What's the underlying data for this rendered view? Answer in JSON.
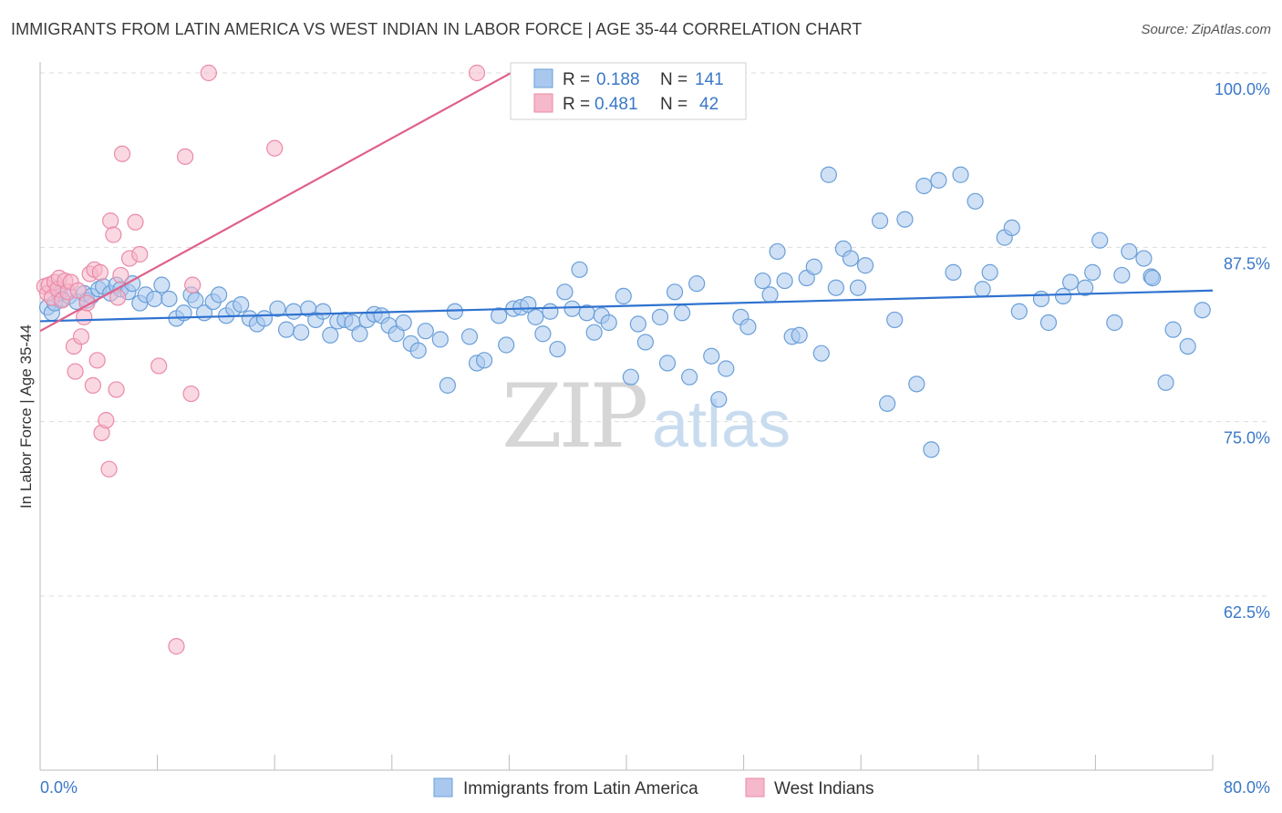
{
  "title": "IMMIGRANTS FROM LATIN AMERICA VS WEST INDIAN IN LABOR FORCE | AGE 35-44 CORRELATION CHART",
  "source": "Source: ZipAtlas.com",
  "watermark": {
    "zip": "ZIP",
    "atlas": "atlas"
  },
  "colors": {
    "blue_fill": "#aac8ee",
    "blue_stroke": "#6a9fd8",
    "blue_line": "#2f72d0",
    "pink_fill": "#f6b8cb",
    "pink_stroke": "#ea8aa9",
    "pink_line": "#e0608a",
    "grid": "#dcdcdc",
    "tick_text": "#3a78c9"
  },
  "legend": {
    "rows": [
      {
        "r_label": "R =",
        "r_value": "0.188",
        "n_label": "N =",
        "n_value": "141"
      },
      {
        "r_label": "R =",
        "r_value": "0.481",
        "n_label": "N =",
        "n_value": "42"
      }
    ]
  },
  "chart_data": {
    "type": "scatter",
    "xlabel": "",
    "ylabel": "In Labor Force | Age 35-44",
    "xlim": [
      0,
      80
    ],
    "ylim": [
      50,
      101
    ],
    "x_tick_labels": {
      "left": "0.0%",
      "right": "80.0%"
    },
    "y_ticks": [
      {
        "value": 100,
        "label": "100.0%"
      },
      {
        "value": 87.5,
        "label": "87.5%"
      },
      {
        "value": 75,
        "label": "75.0%"
      },
      {
        "value": 62.5,
        "label": "62.5%"
      }
    ],
    "grid": "horizontal dashed",
    "series": [
      {
        "name": "Immigrants from Latin America",
        "color": "blue",
        "trend": {
          "x": [
            0,
            80
          ],
          "y": [
            82.2,
            84.4
          ]
        },
        "points": [
          [
            0.5,
            83.2
          ],
          [
            0.8,
            82.8
          ],
          [
            1.0,
            83.5
          ],
          [
            1.3,
            84.2
          ],
          [
            1.5,
            83.8
          ],
          [
            2.0,
            84.0
          ],
          [
            2.5,
            83.6
          ],
          [
            3.0,
            84.2
          ],
          [
            3.2,
            83.7
          ],
          [
            3.5,
            84.0
          ],
          [
            4.0,
            84.5
          ],
          [
            4.3,
            84.7
          ],
          [
            4.8,
            84.2
          ],
          [
            5.2,
            84.8
          ],
          [
            5.5,
            84.5
          ],
          [
            6.0,
            84.3
          ],
          [
            6.3,
            84.9
          ],
          [
            6.8,
            83.5
          ],
          [
            7.2,
            84.1
          ],
          [
            7.8,
            83.8
          ],
          [
            8.3,
            84.8
          ],
          [
            8.8,
            83.8
          ],
          [
            9.3,
            82.4
          ],
          [
            9.8,
            82.8
          ],
          [
            10.3,
            84.1
          ],
          [
            10.6,
            83.7
          ],
          [
            11.2,
            82.8
          ],
          [
            11.8,
            83.6
          ],
          [
            12.2,
            84.1
          ],
          [
            12.7,
            82.6
          ],
          [
            13.2,
            83.1
          ],
          [
            13.7,
            83.4
          ],
          [
            14.3,
            82.4
          ],
          [
            14.8,
            82.0
          ],
          [
            15.3,
            82.4
          ],
          [
            16.2,
            83.1
          ],
          [
            16.8,
            81.6
          ],
          [
            17.3,
            82.9
          ],
          [
            17.8,
            81.4
          ],
          [
            18.3,
            83.1
          ],
          [
            18.8,
            82.3
          ],
          [
            19.3,
            82.9
          ],
          [
            19.8,
            81.2
          ],
          [
            20.3,
            82.2
          ],
          [
            20.8,
            82.3
          ],
          [
            21.3,
            82.1
          ],
          [
            21.8,
            81.3
          ],
          [
            22.3,
            82.3
          ],
          [
            22.8,
            82.7
          ],
          [
            23.3,
            82.6
          ],
          [
            23.8,
            81.9
          ],
          [
            24.3,
            81.3
          ],
          [
            24.8,
            82.1
          ],
          [
            25.3,
            80.6
          ],
          [
            25.8,
            80.1
          ],
          [
            26.3,
            81.5
          ],
          [
            27.3,
            80.9
          ],
          [
            27.8,
            77.6
          ],
          [
            28.3,
            82.9
          ],
          [
            29.3,
            81.1
          ],
          [
            29.8,
            79.2
          ],
          [
            30.3,
            79.4
          ],
          [
            31.3,
            82.6
          ],
          [
            31.8,
            80.5
          ],
          [
            32.3,
            83.1
          ],
          [
            32.8,
            83.2
          ],
          [
            33.3,
            83.4
          ],
          [
            33.8,
            82.5
          ],
          [
            34.3,
            81.3
          ],
          [
            34.8,
            82.9
          ],
          [
            35.3,
            80.2
          ],
          [
            35.8,
            84.3
          ],
          [
            36.3,
            83.1
          ],
          [
            36.8,
            85.9
          ],
          [
            37.3,
            82.8
          ],
          [
            37.8,
            81.4
          ],
          [
            38.3,
            82.6
          ],
          [
            38.8,
            82.1
          ],
          [
            39.8,
            84.0
          ],
          [
            40.3,
            78.2
          ],
          [
            40.8,
            82.0
          ],
          [
            41.3,
            80.7
          ],
          [
            42.3,
            82.5
          ],
          [
            42.8,
            79.2
          ],
          [
            43.3,
            84.3
          ],
          [
            43.8,
            82.8
          ],
          [
            44.3,
            78.2
          ],
          [
            44.8,
            84.9
          ],
          [
            45.8,
            79.7
          ],
          [
            46.3,
            76.6
          ],
          [
            46.8,
            78.8
          ],
          [
            47.8,
            82.5
          ],
          [
            48.3,
            81.8
          ],
          [
            49.3,
            85.1
          ],
          [
            49.8,
            84.1
          ],
          [
            50.3,
            87.2
          ],
          [
            50.8,
            85.1
          ],
          [
            51.3,
            81.1
          ],
          [
            51.8,
            81.2
          ],
          [
            52.3,
            85.3
          ],
          [
            52.8,
            86.1
          ],
          [
            53.3,
            79.9
          ],
          [
            53.8,
            92.7
          ],
          [
            54.3,
            84.6
          ],
          [
            54.8,
            87.4
          ],
          [
            55.3,
            86.7
          ],
          [
            55.8,
            84.6
          ],
          [
            56.3,
            86.2
          ],
          [
            57.3,
            89.4
          ],
          [
            57.8,
            76.3
          ],
          [
            58.3,
            82.3
          ],
          [
            59.0,
            89.5
          ],
          [
            59.8,
            77.7
          ],
          [
            60.3,
            91.9
          ],
          [
            60.8,
            73.0
          ],
          [
            61.3,
            92.3
          ],
          [
            62.3,
            85.7
          ],
          [
            62.8,
            92.7
          ],
          [
            63.8,
            90.8
          ],
          [
            64.3,
            84.5
          ],
          [
            64.8,
            85.7
          ],
          [
            65.8,
            88.2
          ],
          [
            66.3,
            88.9
          ],
          [
            66.8,
            82.9
          ],
          [
            68.3,
            83.8
          ],
          [
            68.8,
            82.1
          ],
          [
            69.8,
            84.0
          ],
          [
            70.3,
            85.0
          ],
          [
            71.3,
            84.6
          ],
          [
            71.8,
            85.7
          ],
          [
            72.3,
            88.0
          ],
          [
            73.3,
            82.1
          ],
          [
            73.8,
            85.5
          ],
          [
            74.3,
            87.2
          ],
          [
            75.3,
            86.7
          ],
          [
            75.8,
            85.4
          ],
          [
            76.8,
            77.8
          ],
          [
            77.3,
            81.6
          ],
          [
            78.3,
            80.4
          ],
          [
            79.3,
            83.0
          ],
          [
            75.9,
            85.3
          ]
        ]
      },
      {
        "name": "West Indians",
        "color": "pink",
        "trend": {
          "x": [
            0,
            33
          ],
          "y": [
            81.5,
            100.5
          ]
        },
        "points": [
          [
            0.3,
            84.7
          ],
          [
            0.5,
            84.2
          ],
          [
            0.6,
            84.8
          ],
          [
            0.8,
            83.9
          ],
          [
            1.0,
            85.0
          ],
          [
            1.2,
            84.5
          ],
          [
            1.3,
            85.3
          ],
          [
            1.5,
            83.7
          ],
          [
            1.7,
            85.1
          ],
          [
            1.9,
            84.3
          ],
          [
            2.1,
            85.0
          ],
          [
            2.3,
            80.4
          ],
          [
            2.4,
            78.6
          ],
          [
            2.6,
            84.4
          ],
          [
            2.8,
            81.1
          ],
          [
            3.0,
            82.5
          ],
          [
            3.2,
            83.5
          ],
          [
            3.4,
            85.6
          ],
          [
            3.6,
            77.6
          ],
          [
            3.7,
            85.9
          ],
          [
            3.9,
            79.4
          ],
          [
            4.1,
            85.7
          ],
          [
            4.2,
            74.2
          ],
          [
            4.5,
            75.1
          ],
          [
            4.7,
            71.6
          ],
          [
            4.8,
            89.4
          ],
          [
            5.0,
            88.4
          ],
          [
            5.2,
            77.3
          ],
          [
            5.3,
            83.9
          ],
          [
            5.5,
            85.5
          ],
          [
            5.6,
            94.2
          ],
          [
            6.1,
            86.7
          ],
          [
            6.5,
            89.3
          ],
          [
            6.8,
            87.0
          ],
          [
            8.1,
            79.0
          ],
          [
            9.3,
            58.9
          ],
          [
            9.9,
            94.0
          ],
          [
            10.3,
            77.0
          ],
          [
            10.4,
            84.8
          ],
          [
            11.5,
            100.0
          ],
          [
            16.0,
            94.6
          ],
          [
            29.8,
            100.0
          ]
        ]
      }
    ]
  }
}
